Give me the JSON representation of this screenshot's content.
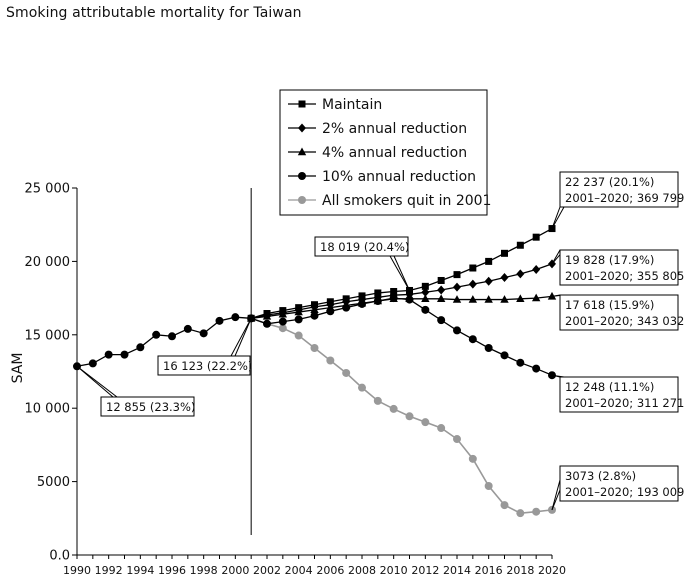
{
  "chart_data": {
    "type": "line",
    "title": "Smoking attributable mortality for Taiwan",
    "ylabel": "SAM",
    "xlabel": "",
    "xlim": [
      1990,
      2020
    ],
    "ylim": [
      0,
      25000
    ],
    "x_ticks": [
      1990,
      1992,
      1994,
      1996,
      1998,
      2000,
      2002,
      2004,
      2006,
      2008,
      2010,
      2012,
      2014,
      2016,
      2018,
      2020
    ],
    "y_ticks": [
      {
        "value": 0,
        "label": "0.0"
      },
      {
        "value": 5000,
        "label": "5000"
      },
      {
        "value": 10000,
        "label": "10 000"
      },
      {
        "value": 15000,
        "label": "15 000"
      },
      {
        "value": 20000,
        "label": "20 000"
      },
      {
        "value": 25000,
        "label": "25 000"
      }
    ],
    "grid": false,
    "legend": "top-center",
    "vertical_line_x": 2001,
    "history": {
      "x": [
        1990,
        1991,
        1992,
        1993,
        1994,
        1995,
        1996,
        1997,
        1998,
        1999,
        2000,
        2001
      ],
      "values": [
        12855,
        13050,
        13650,
        13650,
        14150,
        15000,
        14900,
        15400,
        15100,
        15950,
        16200,
        16123
      ]
    },
    "series": [
      {
        "name": "Maintain",
        "marker": "square",
        "color": "#000000",
        "x": [
          2001,
          2002,
          2003,
          2004,
          2005,
          2006,
          2007,
          2008,
          2009,
          2010,
          2011,
          2012,
          2013,
          2014,
          2015,
          2016,
          2017,
          2018,
          2019,
          2020
        ],
        "values": [
          16123,
          16450,
          16650,
          16850,
          17050,
          17250,
          17450,
          17650,
          17850,
          17950,
          18019,
          18300,
          18700,
          19100,
          19550,
          20000,
          20550,
          21100,
          21650,
          22237
        ]
      },
      {
        "name": "2% annual reduction",
        "marker": "diamond",
        "color": "#000000",
        "x": [
          2001,
          2002,
          2003,
          2004,
          2005,
          2006,
          2007,
          2008,
          2009,
          2010,
          2011,
          2012,
          2013,
          2014,
          2015,
          2016,
          2017,
          2018,
          2019,
          2020
        ],
        "values": [
          16123,
          16350,
          16500,
          16700,
          16900,
          17050,
          17250,
          17400,
          17550,
          17700,
          17750,
          17900,
          18050,
          18250,
          18450,
          18650,
          18900,
          19150,
          19450,
          19828
        ]
      },
      {
        "name": "4% annual reduction",
        "marker": "triangle",
        "color": "#000000",
        "x": [
          2001,
          2002,
          2003,
          2004,
          2005,
          2006,
          2007,
          2008,
          2009,
          2010,
          2011,
          2012,
          2013,
          2014,
          2015,
          2016,
          2017,
          2018,
          2019,
          2020
        ],
        "values": [
          16123,
          16250,
          16400,
          16550,
          16700,
          16850,
          17000,
          17150,
          17300,
          17450,
          17450,
          17450,
          17450,
          17400,
          17400,
          17400,
          17400,
          17450,
          17500,
          17618
        ]
      },
      {
        "name": "10% annual reduction",
        "marker": "circle",
        "color": "#000000",
        "x": [
          2001,
          2002,
          2003,
          2004,
          2005,
          2006,
          2007,
          2008,
          2009,
          2010,
          2011,
          2012,
          2013,
          2014,
          2015,
          2016,
          2017,
          2018,
          2019,
          2020
        ],
        "values": [
          16123,
          15750,
          15900,
          16050,
          16300,
          16600,
          16850,
          17100,
          17300,
          17500,
          17400,
          16700,
          16000,
          15300,
          14700,
          14100,
          13600,
          13100,
          12700,
          12248
        ]
      },
      {
        "name": "All smokers quit in 2001",
        "marker": "circle",
        "color": "#999999",
        "x": [
          2001,
          2002,
          2003,
          2004,
          2005,
          2006,
          2007,
          2008,
          2009,
          2010,
          2011,
          2012,
          2013,
          2014,
          2015,
          2016,
          2017,
          2018,
          2019,
          2020
        ],
        "values": [
          16123,
          15750,
          15450,
          14950,
          14100,
          13250,
          12400,
          11400,
          10500,
          9950,
          9450,
          9050,
          8650,
          7900,
          6550,
          4700,
          3400,
          2850,
          2950,
          3073
        ]
      }
    ],
    "annotations": [
      {
        "id": "hist-start",
        "lines": [
          "12 855 (23.3%)"
        ],
        "x": 1990,
        "y": 12855
      },
      {
        "id": "split",
        "lines": [
          "16 123 (22.2%)"
        ],
        "x": 2001,
        "y": 16123
      },
      {
        "id": "peak",
        "lines": [
          "18 019 (20.4%)"
        ],
        "x": 2011,
        "y": 18019
      },
      {
        "id": "maintain-end",
        "lines": [
          "22 237 (20.1%)",
          "2001–2020; 369 799"
        ],
        "x": 2020,
        "y": 22237
      },
      {
        "id": "two-pct-end",
        "lines": [
          "19 828 (17.9%)",
          "2001–2020; 355 805"
        ],
        "x": 2020,
        "y": 19828
      },
      {
        "id": "four-pct-end",
        "lines": [
          "17 618 (15.9%)",
          "2001–2020; 343 032"
        ],
        "x": 2020,
        "y": 17618
      },
      {
        "id": "ten-pct-end",
        "lines": [
          "12 248 (11.1%)",
          "2001–2020;  311 271"
        ],
        "x": 2020,
        "y": 12248
      },
      {
        "id": "quit-end",
        "lines": [
          "3073 (2.8%)",
          "2001–2020;  193 009"
        ],
        "x": 2020,
        "y": 3073
      }
    ]
  }
}
